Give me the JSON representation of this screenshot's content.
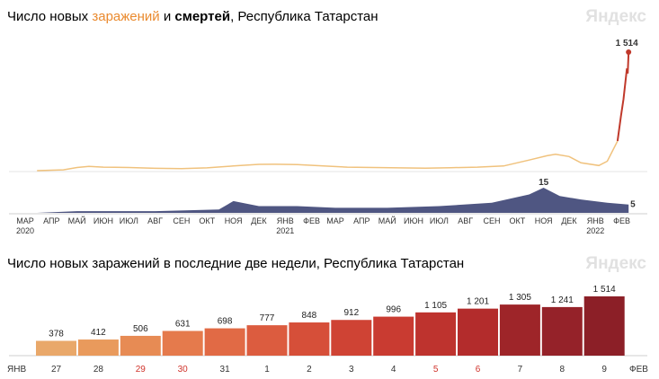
{
  "chart1": {
    "title_part1": "Число новых ",
    "title_orange": "заражений",
    "title_part2": " и ",
    "title_bold": "смертей",
    "title_part3": ", Республика Татарстан",
    "watermark": "Яндекс",
    "peak_label": "1 514",
    "deaths_peak_label": "15",
    "deaths_last_label": "5",
    "months": [
      {
        "label": "МАР",
        "year": "2020"
      },
      {
        "label": "АПР",
        "year": ""
      },
      {
        "label": "МАЙ",
        "year": ""
      },
      {
        "label": "ИЮН",
        "year": ""
      },
      {
        "label": "ИЮЛ",
        "year": ""
      },
      {
        "label": "АВГ",
        "year": ""
      },
      {
        "label": "СЕН",
        "year": ""
      },
      {
        "label": "ОКТ",
        "year": ""
      },
      {
        "label": "НОЯ",
        "year": ""
      },
      {
        "label": "ДЕК",
        "year": ""
      },
      {
        "label": "ЯНВ",
        "year": "2021"
      },
      {
        "label": "ФЕВ",
        "year": ""
      },
      {
        "label": "МАР",
        "year": ""
      },
      {
        "label": "АПР",
        "year": ""
      },
      {
        "label": "МАЙ",
        "year": ""
      },
      {
        "label": "ИЮН",
        "year": ""
      },
      {
        "label": "ИЮЛ",
        "year": ""
      },
      {
        "label": "АВГ",
        "year": ""
      },
      {
        "label": "СЕН",
        "year": ""
      },
      {
        "label": "ОКТ",
        "year": ""
      },
      {
        "label": "НОЯ",
        "year": ""
      },
      {
        "label": "ДЕК",
        "year": ""
      },
      {
        "label": "ЯНВ",
        "year": "2022"
      },
      {
        "label": "ФЕВ",
        "year": ""
      }
    ],
    "colors": {
      "cases_line": "#f0c27d",
      "cases_recent": "#c0392b",
      "deaths_area": "#4f5682"
    }
  },
  "chart2": {
    "title": "Число новых заражений в последние две недели, Республика Татарстан",
    "watermark": "Яндекс",
    "start_month": "ЯНВ",
    "end_month": "ФЕВ"
  },
  "chart_data": [
    {
      "type": "line",
      "title": "Число новых заражений и смертей, Республика Татарстан",
      "x_range": [
        "2020-03",
        "2022-02-09"
      ],
      "series": [
        {
          "name": "заражений",
          "points": [
            [
              "2020-03-15",
              0
            ],
            [
              "2020-04-15",
              10
            ],
            [
              "2020-05-01",
              40
            ],
            [
              "2020-05-15",
              55
            ],
            [
              "2020-06-01",
              45
            ],
            [
              "2020-07-01",
              40
            ],
            [
              "2020-08-01",
              30
            ],
            [
              "2020-09-01",
              25
            ],
            [
              "2020-10-01",
              35
            ],
            [
              "2020-11-01",
              60
            ],
            [
              "2020-12-01",
              80
            ],
            [
              "2020-12-20",
              82
            ],
            [
              "2021-01-15",
              78
            ],
            [
              "2021-02-15",
              60
            ],
            [
              "2021-03-15",
              45
            ],
            [
              "2021-04-15",
              40
            ],
            [
              "2021-05-15",
              35
            ],
            [
              "2021-06-15",
              32
            ],
            [
              "2021-07-15",
              38
            ],
            [
              "2021-08-15",
              45
            ],
            [
              "2021-09-15",
              60
            ],
            [
              "2021-10-15",
              135
            ],
            [
              "2021-11-05",
              190
            ],
            [
              "2021-11-15",
              210
            ],
            [
              "2021-12-01",
              180
            ],
            [
              "2021-12-15",
              100
            ],
            [
              "2022-01-05",
              65
            ],
            [
              "2022-01-15",
              120
            ],
            [
              "2022-01-27",
              378
            ],
            [
              "2022-01-31",
              698
            ],
            [
              "2022-02-03",
              912
            ],
            [
              "2022-02-06",
              1201
            ],
            [
              "2022-02-07",
              1305
            ],
            [
              "2022-02-08",
              1241
            ],
            [
              "2022-02-09",
              1514
            ]
          ]
        },
        {
          "name": "смертей",
          "points": [
            [
              "2020-03-15",
              0
            ],
            [
              "2020-05-01",
              1
            ],
            [
              "2020-08-01",
              1
            ],
            [
              "2020-10-15",
              2
            ],
            [
              "2020-11-01",
              7
            ],
            [
              "2020-12-01",
              4
            ],
            [
              "2021-01-15",
              4
            ],
            [
              "2021-03-01",
              3
            ],
            [
              "2021-05-01",
              3
            ],
            [
              "2021-07-01",
              4
            ],
            [
              "2021-09-01",
              6
            ],
            [
              "2021-10-15",
              11
            ],
            [
              "2021-11-01",
              15
            ],
            [
              "2021-11-20",
              10
            ],
            [
              "2021-12-15",
              8
            ],
            [
              "2022-01-15",
              6
            ],
            [
              "2022-02-09",
              5
            ]
          ]
        }
      ]
    },
    {
      "type": "bar",
      "title": "Число новых заражений в последние две недели, Республика Татарстан",
      "categories": [
        "27",
        "28",
        "29",
        "30",
        "31",
        "1",
        "2",
        "3",
        "4",
        "5",
        "6",
        "7",
        "8",
        "9"
      ],
      "values": [
        378,
        412,
        506,
        631,
        698,
        777,
        848,
        912,
        996,
        1105,
        1201,
        1305,
        1241,
        1514
      ],
      "value_labels": [
        "378",
        "412",
        "506",
        "631",
        "698",
        "777",
        "848",
        "912",
        "996",
        "1 105",
        "1 201",
        "1 305",
        "1 241",
        "1 514"
      ],
      "weekend": [
        false,
        false,
        true,
        true,
        false,
        false,
        false,
        false,
        false,
        true,
        true,
        false,
        false,
        false
      ],
      "colors": [
        "#e9a86a",
        "#e99a5c",
        "#e78b54",
        "#e57a4c",
        "#e16a45",
        "#dc5c3f",
        "#d64f39",
        "#cf4334",
        "#c93b31",
        "#be332e",
        "#b32c2c",
        "#9e2529",
        "#952229",
        "#8c1f27"
      ],
      "ylim": [
        0,
        1514
      ]
    }
  ]
}
